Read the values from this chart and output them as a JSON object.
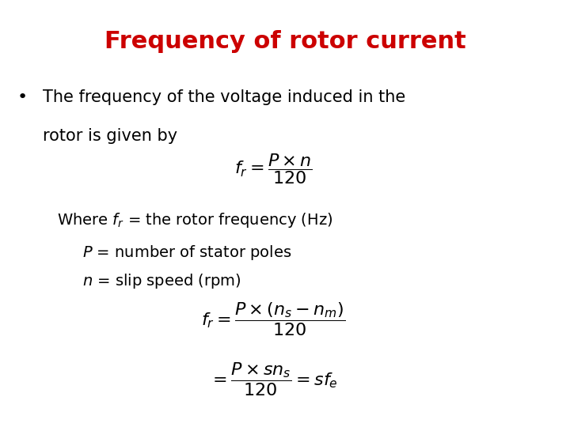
{
  "title": "Frequency of rotor current",
  "title_color": "#CC0000",
  "title_fontsize": 22,
  "title_fontweight": "bold",
  "bg_color": "#FFFFFF",
  "bullet_text_line1": "The frequency of the voltage induced in the",
  "bullet_text_line2": "rotor is given by",
  "where_line": "Where $f_r$ = the rotor frequency (Hz)",
  "p_line": "$P$ = number of stator poles",
  "n_line": "$n$ = slip speed (rpm)",
  "formula1": "$f_r = \\dfrac{P \\times n}{120}$",
  "formula2": "$f_r = \\dfrac{P \\times (n_s - n_m)}{120}$",
  "formula3": "$= \\dfrac{P \\times sn_s}{120} = sf_e$",
  "body_fontsize": 15,
  "formula_fontsize": 14
}
